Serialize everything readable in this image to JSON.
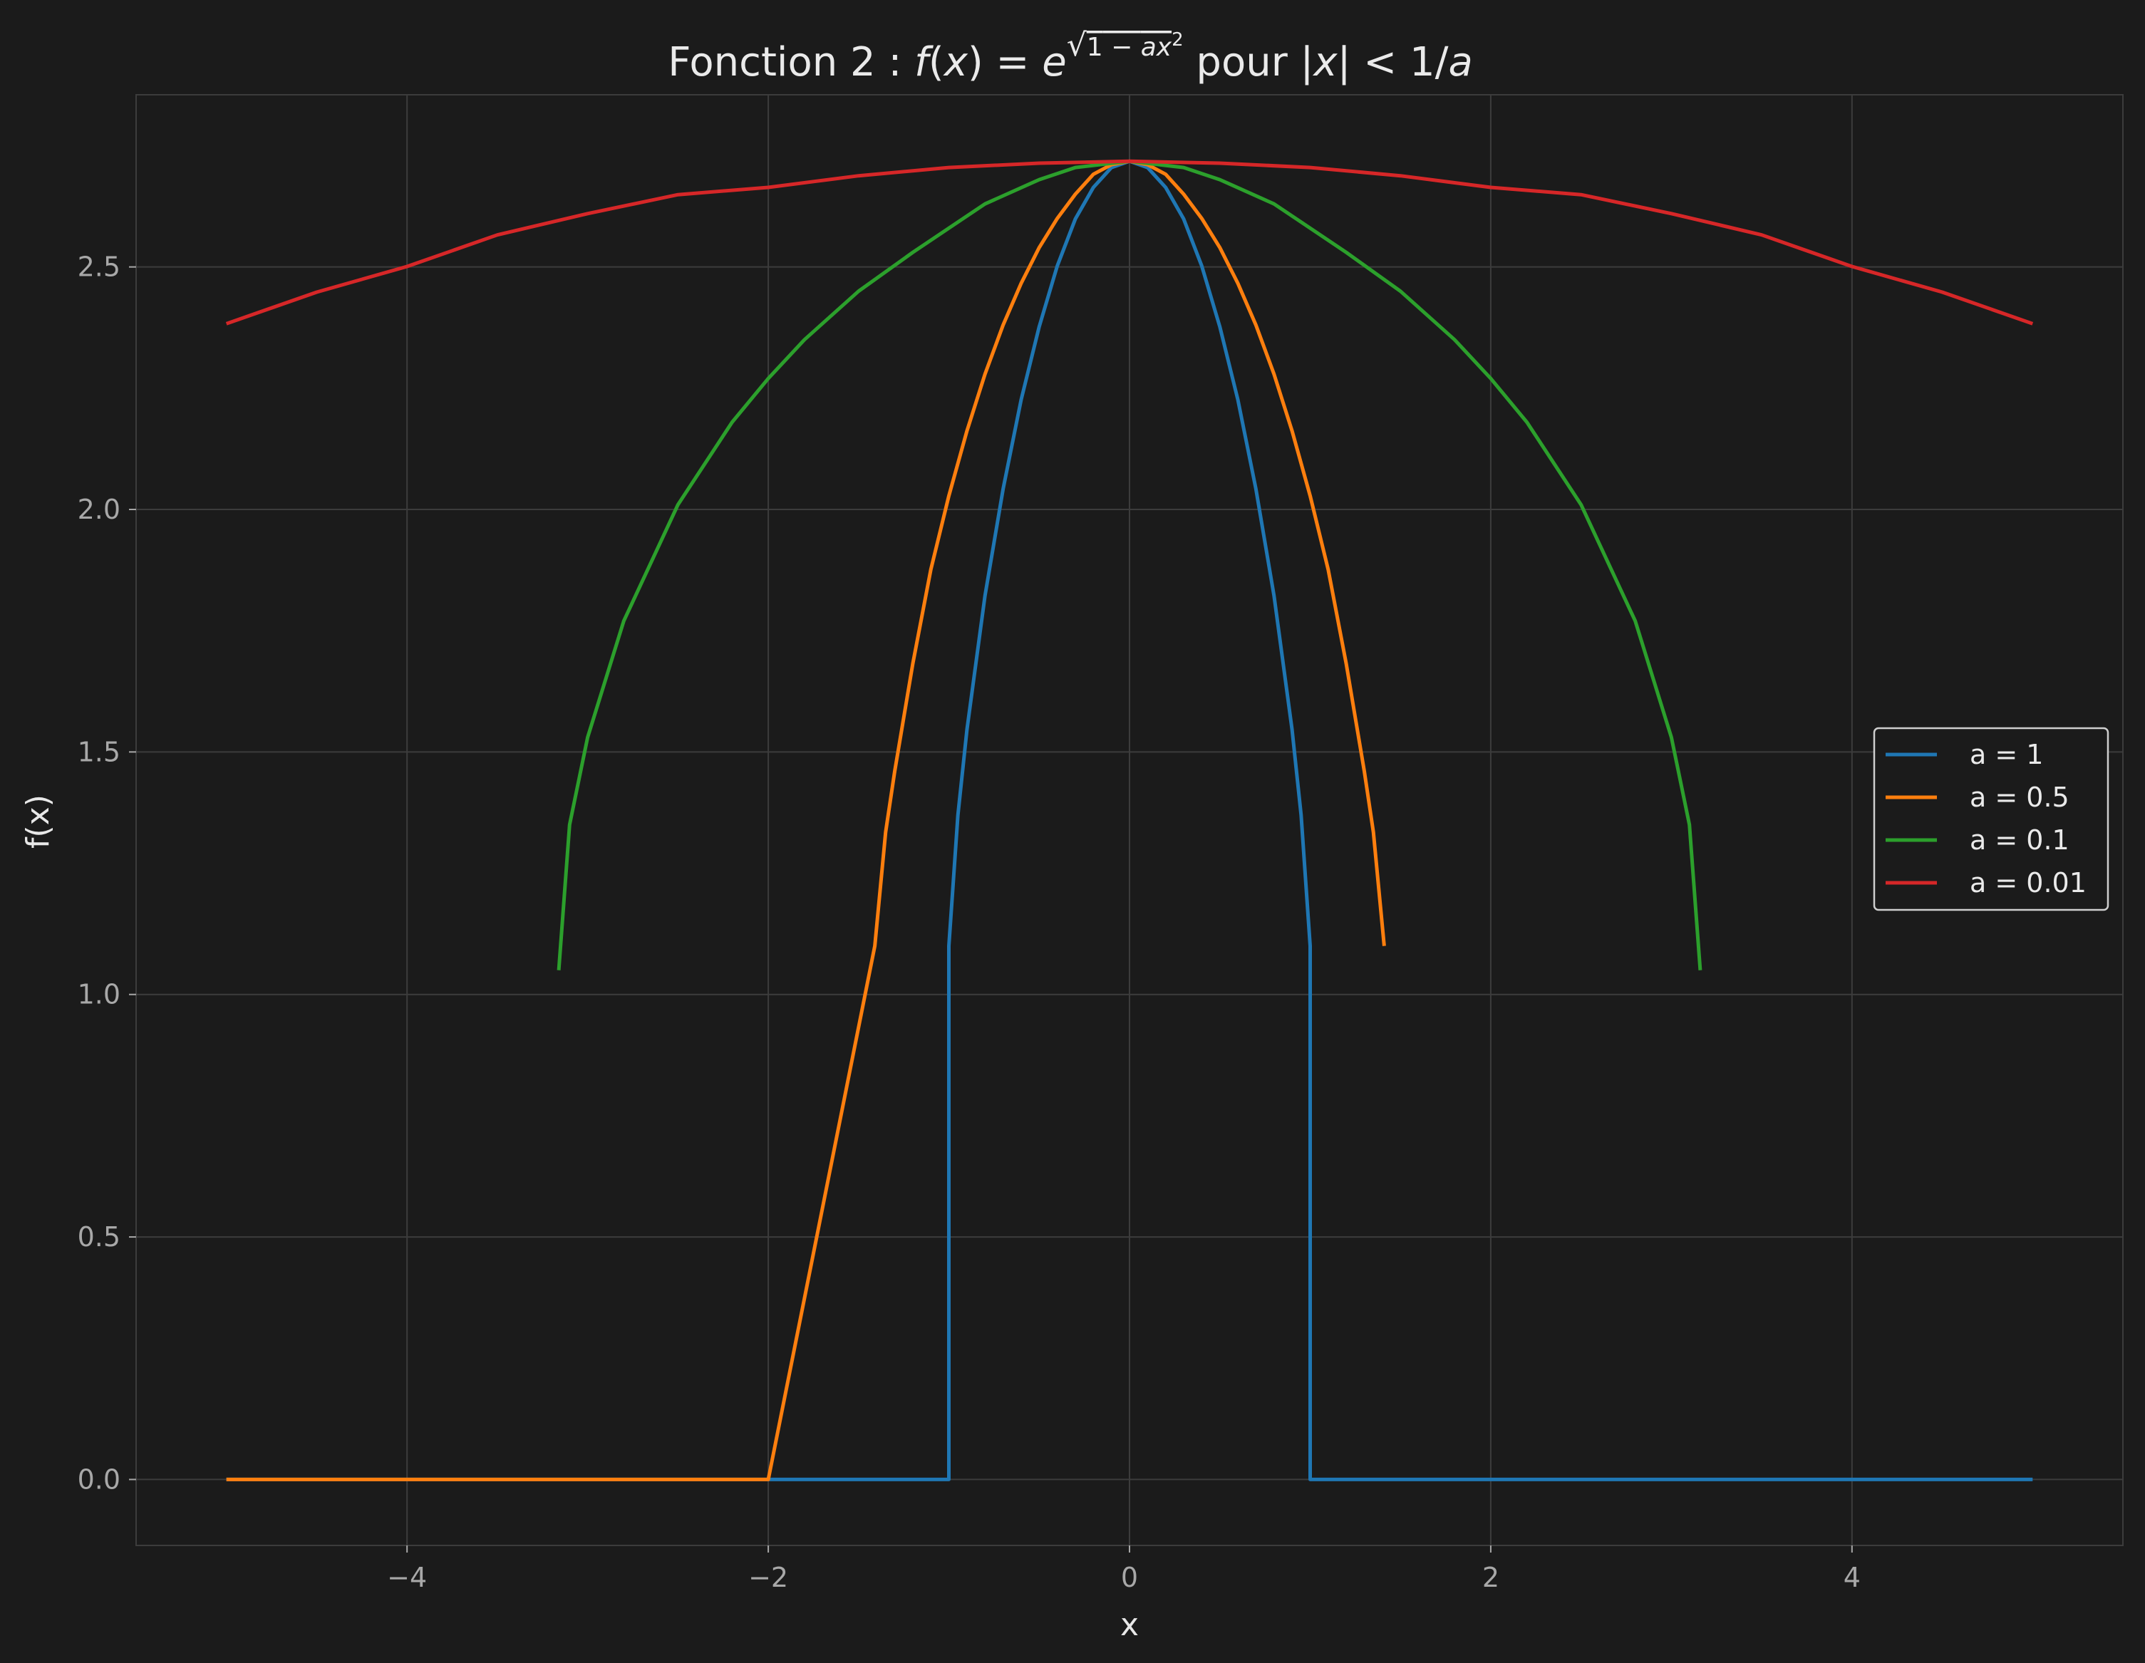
{
  "chart_data": {
    "type": "line",
    "title": {
      "prefix": "Fonction 2 : ",
      "f": "f",
      "open": "(",
      "x": "x",
      "close": ") = ",
      "e": "e",
      "exp_one": "1",
      "exp_minus": " − ",
      "exp_ax": "ax",
      "exp_power": "2",
      "pour": " pour |",
      "x2": "x",
      "bar_lt": "| < 1/",
      "a": "a"
    },
    "xlabel": "x",
    "ylabel": "f(x)",
    "xlim": [
      -5.5,
      5.5
    ],
    "ylim": [
      -0.136,
      2.855
    ],
    "x_ticks": [
      -4,
      -2,
      0,
      2,
      4
    ],
    "x_tick_labels": [
      "−4",
      "−2",
      "0",
      "2",
      "4"
    ],
    "y_ticks": [
      0.0,
      0.5,
      1.0,
      1.5,
      2.0,
      2.5
    ],
    "y_tick_labels": [
      "0.0",
      "0.5",
      "1.0",
      "1.5",
      "2.0",
      "2.5"
    ],
    "grid": true,
    "legend_position": "center-right",
    "background": "#1b1b1b",
    "grid_color": "#3c3c3c",
    "series": [
      {
        "name": "a = 1",
        "color": "#1f77b4",
        "points": [
          [
            -5,
            0
          ],
          [
            -1,
            0
          ],
          [
            -1,
            1.1
          ],
          [
            -0.95,
            1.37
          ],
          [
            -0.9,
            1.546
          ],
          [
            -0.8,
            1.822
          ],
          [
            -0.7,
            2.042
          ],
          [
            -0.6,
            2.226
          ],
          [
            -0.5,
            2.377
          ],
          [
            -0.4,
            2.502
          ],
          [
            -0.3,
            2.599
          ],
          [
            -0.2,
            2.664
          ],
          [
            -0.1,
            2.705
          ],
          [
            0,
            2.718
          ],
          [
            0.1,
            2.705
          ],
          [
            0.2,
            2.664
          ],
          [
            0.3,
            2.599
          ],
          [
            0.4,
            2.502
          ],
          [
            0.5,
            2.377
          ],
          [
            0.6,
            2.226
          ],
          [
            0.7,
            2.042
          ],
          [
            0.8,
            1.822
          ],
          [
            0.9,
            1.546
          ],
          [
            0.95,
            1.37
          ],
          [
            1,
            1.1
          ],
          [
            1,
            0
          ],
          [
            5,
            0
          ]
        ]
      },
      {
        "name": "a = 0.5",
        "color": "#ff7f0e",
        "points": [
          [
            -5,
            0
          ],
          [
            -2,
            0
          ],
          [
            -1.41,
            1.1
          ],
          [
            -1.35,
            1.335
          ],
          [
            -1.3,
            1.46
          ],
          [
            -1.2,
            1.682
          ],
          [
            -1.1,
            1.876
          ],
          [
            -1,
            2.028
          ],
          [
            -0.9,
            2.162
          ],
          [
            -0.8,
            2.279
          ],
          [
            -0.7,
            2.38
          ],
          [
            -0.6,
            2.466
          ],
          [
            -0.5,
            2.54
          ],
          [
            -0.4,
            2.6
          ],
          [
            -0.3,
            2.65
          ],
          [
            -0.2,
            2.691
          ],
          [
            -0.1,
            2.711
          ],
          [
            0,
            2.718
          ],
          [
            0.1,
            2.711
          ],
          [
            0.2,
            2.691
          ],
          [
            0.3,
            2.65
          ],
          [
            0.4,
            2.6
          ],
          [
            0.5,
            2.54
          ],
          [
            0.6,
            2.466
          ],
          [
            0.7,
            2.38
          ],
          [
            0.8,
            2.279
          ],
          [
            0.9,
            2.162
          ],
          [
            1,
            2.028
          ],
          [
            1.1,
            1.876
          ],
          [
            1.2,
            1.682
          ],
          [
            1.3,
            1.46
          ],
          [
            1.35,
            1.335
          ],
          [
            1.41,
            1.1
          ]
        ]
      },
      {
        "name": "a = 0.1",
        "color": "#2ca02c",
        "points": [
          [
            -3.16,
            1.05
          ],
          [
            -3.1,
            1.35
          ],
          [
            -3,
            1.53
          ],
          [
            -2.8,
            1.77
          ],
          [
            -2.5,
            2.01
          ],
          [
            -2.2,
            2.18
          ],
          [
            -2,
            2.27
          ],
          [
            -1.8,
            2.35
          ],
          [
            -1.5,
            2.45
          ],
          [
            -1.2,
            2.53
          ],
          [
            -1,
            2.58
          ],
          [
            -0.8,
            2.63
          ],
          [
            -0.5,
            2.68
          ],
          [
            -0.3,
            2.705
          ],
          [
            0,
            2.718
          ],
          [
            0.3,
            2.705
          ],
          [
            0.5,
            2.68
          ],
          [
            0.8,
            2.63
          ],
          [
            1,
            2.58
          ],
          [
            1.2,
            2.53
          ],
          [
            1.5,
            2.45
          ],
          [
            1.8,
            2.35
          ],
          [
            2,
            2.27
          ],
          [
            2.2,
            2.18
          ],
          [
            2.5,
            2.01
          ],
          [
            2.8,
            1.77
          ],
          [
            3,
            1.53
          ],
          [
            3.1,
            1.35
          ],
          [
            3.16,
            1.05
          ]
        ]
      },
      {
        "name": "a = 0.01",
        "color": "#d62728",
        "points": [
          [
            -5,
            2.383
          ],
          [
            -4.5,
            2.448
          ],
          [
            -4,
            2.501
          ],
          [
            -3.5,
            2.566
          ],
          [
            -3,
            2.61
          ],
          [
            -2.5,
            2.649
          ],
          [
            -2,
            2.664
          ],
          [
            -1.5,
            2.688
          ],
          [
            -1,
            2.705
          ],
          [
            -0.5,
            2.714
          ],
          [
            0,
            2.718
          ],
          [
            0.5,
            2.714
          ],
          [
            1,
            2.705
          ],
          [
            1.5,
            2.688
          ],
          [
            2,
            2.664
          ],
          [
            2.5,
            2.649
          ],
          [
            3,
            2.61
          ],
          [
            3.5,
            2.566
          ],
          [
            4,
            2.501
          ],
          [
            4.5,
            2.448
          ],
          [
            5,
            2.383
          ]
        ]
      }
    ]
  }
}
